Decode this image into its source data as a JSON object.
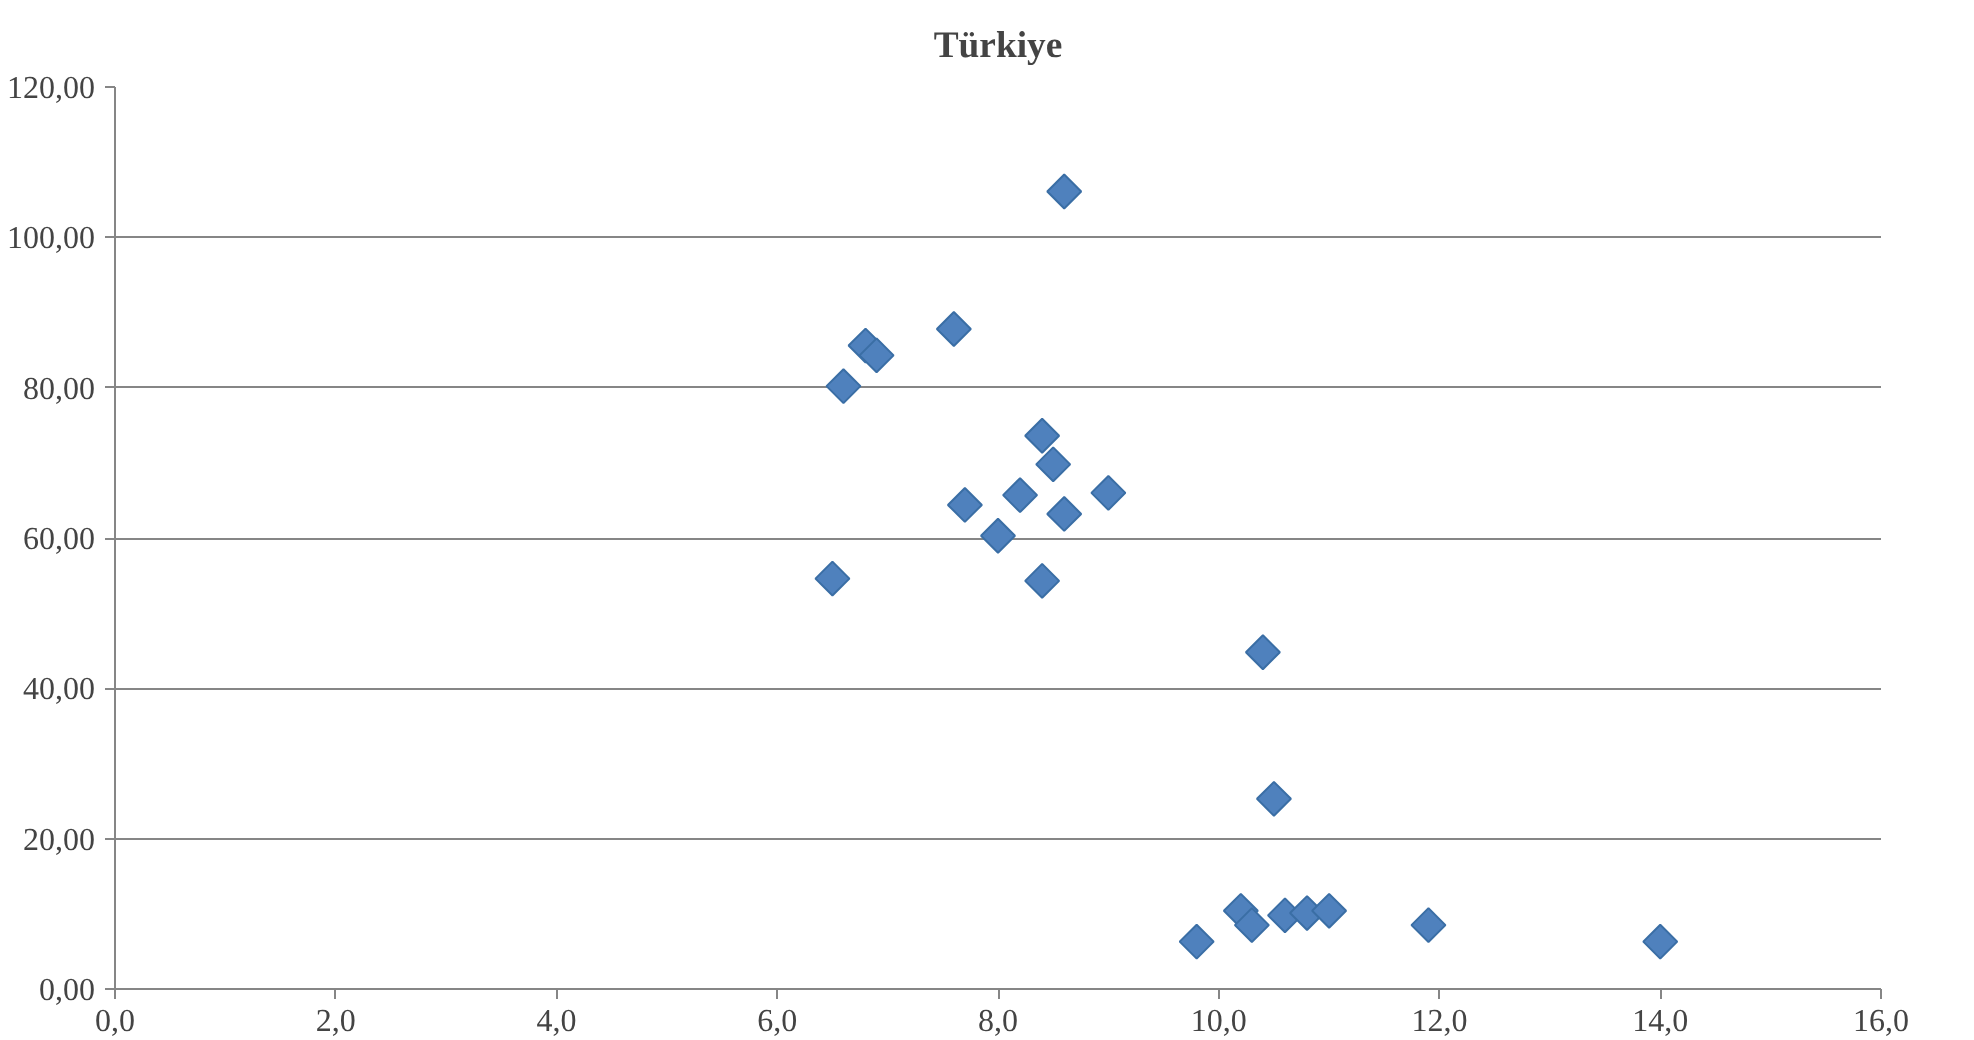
{
  "chart_data": {
    "type": "scatter",
    "title": "Türkiye",
    "marker": "diamond",
    "grid": "y",
    "series": [
      {
        "color": "#4f81bd",
        "x": [
          6.5,
          6.6,
          6.8,
          6.9,
          7.6,
          7.7,
          8.0,
          8.2,
          8.4,
          8.5,
          8.4,
          8.6,
          8.6,
          9.0,
          10.4,
          10.5,
          9.8,
          10.2,
          10.3,
          10.6,
          10.8,
          11.0,
          11.9,
          14.0
        ],
        "values": [
          54.6,
          80.2,
          85.6,
          84.3,
          87.8,
          64.4,
          60.3,
          65.7,
          73.6,
          69.8,
          54.3,
          63.2,
          106.1,
          66.0,
          44.8,
          25.3,
          6.3,
          10.4,
          8.5,
          9.8,
          10.1,
          10.4,
          8.5,
          6.3
        ]
      }
    ],
    "xlim": [
      0,
      16
    ],
    "ylim": [
      0,
      120
    ],
    "xticks": [
      {
        "value": 0,
        "label": "0,0"
      },
      {
        "value": 2,
        "label": "2,0"
      },
      {
        "value": 4,
        "label": "4,0"
      },
      {
        "value": 6,
        "label": "6,0"
      },
      {
        "value": 8,
        "label": "8,0"
      },
      {
        "value": 10,
        "label": "10,0"
      },
      {
        "value": 12,
        "label": "12,0"
      },
      {
        "value": 14,
        "label": "14,0"
      },
      {
        "value": 16,
        "label": "16,0"
      }
    ],
    "yticks": [
      {
        "value": 0,
        "label": "0,00"
      },
      {
        "value": 20,
        "label": "20,00"
      },
      {
        "value": 40,
        "label": "40,00"
      },
      {
        "value": 60,
        "label": "60,00"
      },
      {
        "value": 80,
        "label": "80,00"
      },
      {
        "value": 100,
        "label": "100,00"
      },
      {
        "value": 120,
        "label": "120,00"
      }
    ]
  }
}
